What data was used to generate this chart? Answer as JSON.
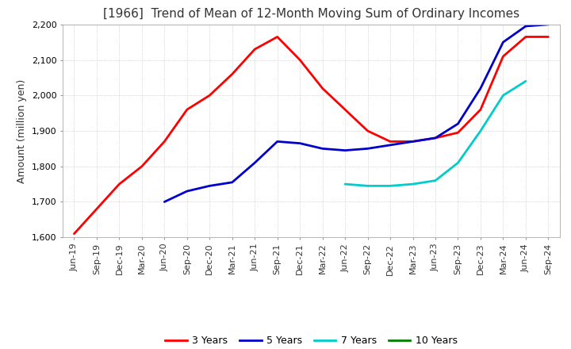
{
  "title": "[1966]  Trend of Mean of 12-Month Moving Sum of Ordinary Incomes",
  "ylabel": "Amount (million yen)",
  "ylim": [
    1600,
    2200
  ],
  "yticks": [
    1600,
    1700,
    1800,
    1900,
    2000,
    2100,
    2200
  ],
  "x_labels": [
    "Jun-19",
    "Sep-19",
    "Dec-19",
    "Mar-20",
    "Jun-20",
    "Sep-20",
    "Dec-20",
    "Mar-21",
    "Jun-21",
    "Sep-21",
    "Dec-21",
    "Mar-22",
    "Jun-22",
    "Sep-22",
    "Dec-22",
    "Mar-23",
    "Jun-23",
    "Sep-23",
    "Dec-23",
    "Mar-24",
    "Jun-24",
    "Sep-24"
  ],
  "series": {
    "3 Years": {
      "color": "#FF0000",
      "data": [
        1610,
        1680,
        1750,
        1800,
        1870,
        1960,
        2000,
        2060,
        2130,
        2165,
        2100,
        2020,
        1960,
        1900,
        1870,
        1870,
        1880,
        1895,
        1960,
        2110,
        2165,
        2165
      ]
    },
    "5 Years": {
      "color": "#0000CC",
      "data": [
        null,
        null,
        null,
        null,
        1700,
        1730,
        1745,
        1755,
        1810,
        1870,
        1865,
        1850,
        1845,
        1850,
        1860,
        1870,
        1880,
        1920,
        2020,
        2150,
        2195,
        2200
      ]
    },
    "7 Years": {
      "color": "#00CCCC",
      "data": [
        null,
        null,
        null,
        null,
        null,
        null,
        null,
        null,
        null,
        null,
        null,
        null,
        1750,
        1745,
        1745,
        1750,
        1760,
        1810,
        1900,
        2000,
        2040,
        null
      ]
    },
    "10 Years": {
      "color": "#008000",
      "data": [
        null,
        null,
        null,
        null,
        null,
        null,
        null,
        null,
        null,
        null,
        null,
        null,
        null,
        null,
        null,
        null,
        null,
        null,
        null,
        null,
        null,
        null
      ]
    }
  },
  "legend_labels": [
    "3 Years",
    "5 Years",
    "7 Years",
    "10 Years"
  ],
  "legend_colors": [
    "#FF0000",
    "#0000CC",
    "#00CCCC",
    "#008000"
  ],
  "background_color": "#FFFFFF",
  "grid_color": "#BBBBBB",
  "title_color": "#333333",
  "title_fontsize": 11,
  "ylabel_fontsize": 9,
  "tick_fontsize": 8,
  "legend_fontsize": 9,
  "linewidth": 2.0
}
